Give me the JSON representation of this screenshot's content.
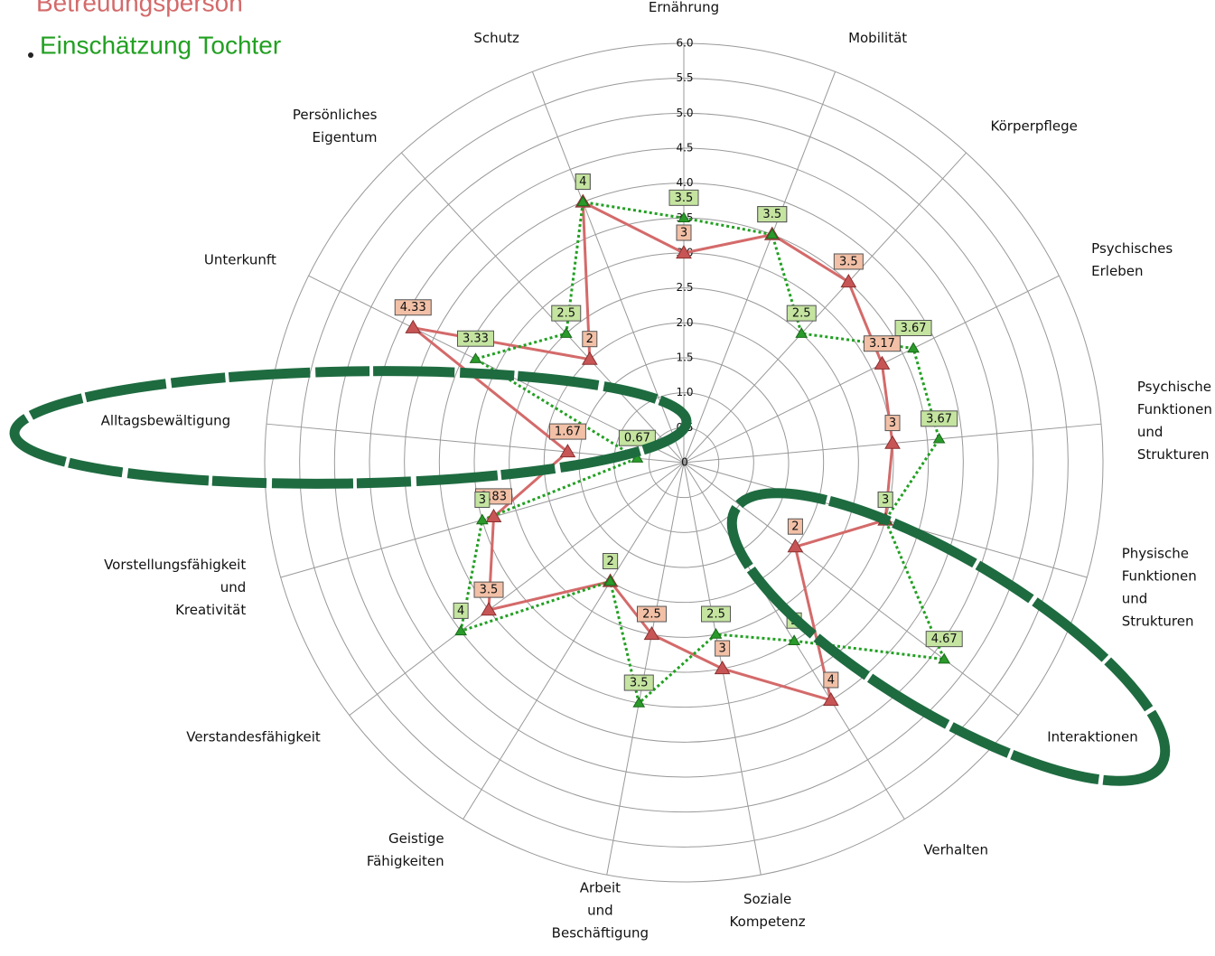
{
  "chart_data": {
    "type": "radar",
    "categories": [
      "Ernährung",
      "Mobilität",
      "Körperpflege",
      "Psychisches\nErleben",
      "Psychische\nFunktionen\nund\nStrukturen",
      "Physische\nFunktionen\nund\nStrukturen",
      "Interaktionen",
      "Verhalten",
      "Soziale\nKompetenz",
      "Arbeit\nund\nBeschäftigung",
      "Geistige\nFähigkeiten",
      "Verstandesfähigkeit",
      "Vorstellungsfähigkeit\nund\nKreativität",
      "Alltagsbewältigung",
      "Unterkunft",
      "Persönliches\nEigentum",
      "Schutz"
    ],
    "series": [
      {
        "name": "Betreuungsperson",
        "color": "#d46a6a",
        "values": [
          3,
          3.5,
          3.5,
          3.17,
          3,
          3,
          2,
          4,
          3,
          2.5,
          2,
          3.5,
          2.83,
          1.67,
          4.33,
          2,
          4
        ]
      },
      {
        "name": "Einschätzung Tochter",
        "color": "#22a022",
        "values": [
          3.5,
          3.5,
          2.5,
          3.67,
          3.67,
          3,
          4.67,
          3,
          2.5,
          3.5,
          2,
          4,
          3,
          0.67,
          3.33,
          2.5,
          4
        ]
      }
    ],
    "ylim": [
      0,
      6
    ],
    "yticks": [
      0,
      0.5,
      {
        "value": 1,
        "label": "1.0"
      },
      1.5,
      {
        "value": 2,
        "label": "2.0"
      },
      2.5,
      {
        "value": 3,
        "label": "3.0"
      },
      3.5,
      {
        "value": 4,
        "label": "4.0"
      },
      4.5,
      {
        "value": 5,
        "label": "5.0"
      },
      5.5,
      {
        "value": 6,
        "label": "6.0"
      }
    ]
  }
}
